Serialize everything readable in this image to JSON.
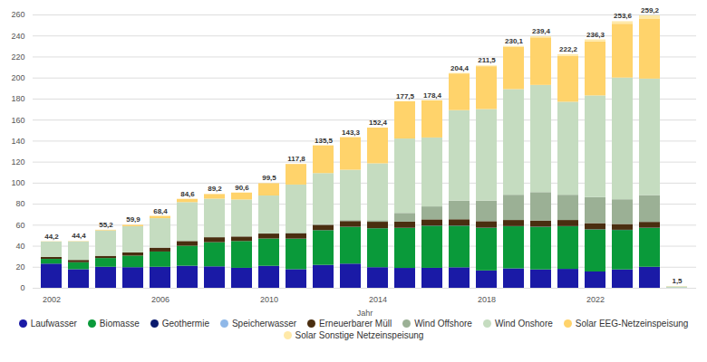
{
  "chart_data": {
    "type": "bar",
    "stacked": true,
    "grid": true,
    "legend": "bottom",
    "x_label": "Jahr",
    "categories": [
      "2002",
      null,
      null,
      null,
      "2006",
      null,
      null,
      null,
      "2010",
      null,
      null,
      null,
      "2014",
      null,
      null,
      null,
      "2018",
      null,
      null,
      null,
      "2022",
      null,
      null,
      null
    ],
    "ylim": [
      0,
      260
    ],
    "yticks": [
      0,
      20,
      40,
      60,
      80,
      100,
      120,
      140,
      160,
      180,
      200,
      220,
      240,
      260
    ],
    "totals": [
      44.2,
      44.4,
      55.2,
      59.9,
      68.4,
      84.6,
      89.2,
      90.6,
      99.5,
      117.8,
      135.5,
      143.3,
      152.4,
      177.5,
      178.4,
      204.4,
      211.5,
      230.1,
      239.4,
      222.2,
      236.3,
      253.6,
      259.2,
      1.5
    ],
    "total_labels": [
      "44,2",
      "44,4",
      "55,2",
      "59,9",
      "68,4",
      "84,6",
      "89,2",
      "90,6",
      "99,5",
      "117,8",
      "135,5",
      "143,3",
      "152,4",
      "177,5",
      "178,4",
      "204,4",
      "211,5",
      "230,1",
      "239,4",
      "222,2",
      "236,3",
      "253,6",
      "259,2",
      "1,5"
    ],
    "series": [
      {
        "name": "Laufwasser",
        "color": "#1a1aa6",
        "values": [
          23,
          17.7,
          20,
          19.6,
          20,
          21,
          20.4,
          19,
          20.9,
          17.7,
          21.8,
          23,
          19.6,
          18.9,
          19,
          19.5,
          16.5,
          18.5,
          17.5,
          18,
          15.5,
          17.5,
          20,
          0.1
        ]
      },
      {
        "name": "Biomasse",
        "color": "#0a9a3a",
        "values": [
          4.5,
          6.6,
          8.3,
          11,
          14.5,
          19,
          23,
          25.5,
          26,
          29,
          33,
          35,
          37,
          38,
          40,
          39.5,
          40.5,
          40,
          40.5,
          40.5,
          40,
          37.5,
          37,
          0.2
        ]
      },
      {
        "name": "Geothermie",
        "color": "#0a1a6e",
        "values": [
          0,
          0,
          0,
          0,
          0,
          0,
          0,
          0,
          0,
          0.1,
          0.1,
          0.1,
          0.1,
          0.2,
          0.2,
          0.2,
          0.2,
          0.2,
          0.2,
          0.2,
          0.2,
          0.2,
          0.2,
          0
        ]
      },
      {
        "name": "Speicherwasser",
        "color": "#8fb8e8",
        "values": [
          0,
          0,
          0,
          0,
          0,
          0,
          0,
          0,
          0,
          0,
          0,
          0,
          0,
          0,
          0,
          0,
          0,
          0,
          0,
          0,
          0,
          0,
          0,
          0
        ]
      },
      {
        "name": "Erneuerbarer Müll",
        "color": "#4a2e10",
        "values": [
          1.9,
          2.2,
          2.1,
          3.0,
          3.7,
          4.5,
          4.7,
          4.3,
          4.7,
          5,
          5,
          5.4,
          6.1,
          5.8,
          5.9,
          6,
          6.2,
          5.8,
          5.8,
          5.8,
          5.8,
          5.5,
          5.5,
          0
        ]
      },
      {
        "name": "Wind Offshore",
        "color": "#9bb095",
        "values": [
          0,
          0,
          0,
          0,
          0,
          0,
          0,
          0,
          0.2,
          0.6,
          0.7,
          0.9,
          1.5,
          8.3,
          12.3,
          17.7,
          19.5,
          24,
          27,
          24,
          24.8,
          23.5,
          25.5,
          0
        ]
      },
      {
        "name": "Wind Onshore",
        "color": "#c5dcc0",
        "values": [
          14.6,
          17.6,
          24.2,
          25.0,
          28.0,
          37.0,
          36.7,
          35.2,
          36.0,
          45.8,
          48.5,
          47.9,
          54.1,
          70.8,
          65.6,
          86.1,
          87.1,
          100.5,
          102.0,
          88.5,
          96.7,
          115.8,
          110.8,
          1.0
        ]
      },
      {
        "name": "Solar EEG-Netzeinspeisung",
        "color": "#ffd36b",
        "values": [
          0.2,
          0.3,
          0.6,
          1.3,
          2.2,
          3.1,
          4.4,
          6.6,
          11.7,
          19.6,
          26.4,
          31,
          34,
          35.5,
          35.4,
          34.9,
          40.8,
          40.2,
          45.2,
          43.7,
          51.4,
          51.2,
          57.2,
          0.2
        ]
      },
      {
        "name": "Solar Sonstige Netzeinspeisung",
        "color": "#ffe9a8",
        "values": [
          0,
          0,
          0,
          0,
          0,
          0,
          0,
          0,
          0,
          0,
          0,
          0,
          0,
          0,
          0,
          0.5,
          0.7,
          0.9,
          1.2,
          1.5,
          1.9,
          2.4,
          3.0,
          0
        ]
      }
    ]
  }
}
